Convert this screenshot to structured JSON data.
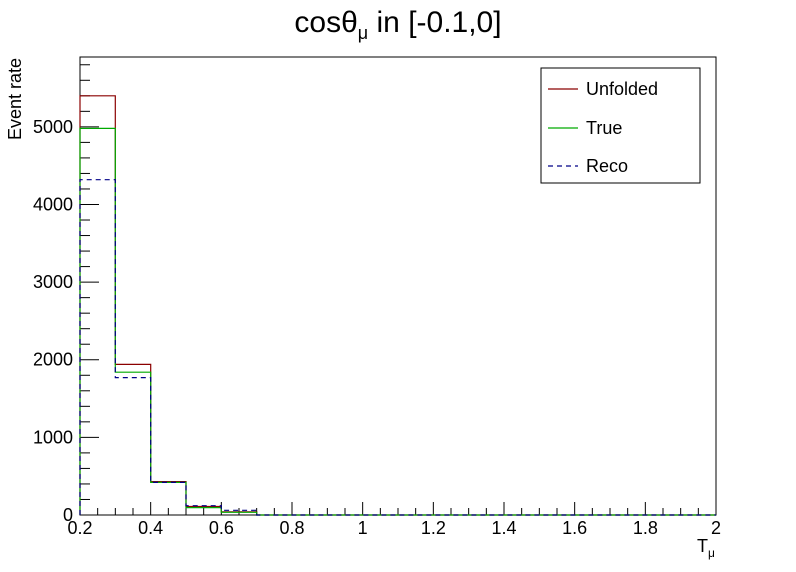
{
  "chart_data": {
    "type": "histogram",
    "title": {
      "main": "cos",
      "theta": "θ",
      "sub": "μ",
      "rest": " in [-0.1,0]"
    },
    "xlabel": {
      "main": "T",
      "sub": "μ"
    },
    "ylabel": "Event rate",
    "xlim": [
      0.2,
      2.0
    ],
    "ylim": [
      0,
      5900
    ],
    "x_ticks": [
      "0.2",
      "0.4",
      "0.6",
      "0.8",
      "1",
      "1.2",
      "1.4",
      "1.6",
      "1.8",
      "2"
    ],
    "y_ticks": [
      "0",
      "1000",
      "2000",
      "3000",
      "4000",
      "5000"
    ],
    "bin_edges": [
      0.2,
      0.3,
      0.4,
      0.5,
      0.6,
      0.7,
      0.8,
      0.9,
      1.0,
      1.1,
      1.2,
      1.3,
      1.4,
      1.5,
      1.6,
      1.7,
      1.8,
      1.9,
      2.0
    ],
    "series": [
      {
        "name": "Unfolded",
        "color": "#8b0000",
        "dash": false,
        "values": [
          5400,
          1940,
          430,
          110,
          40,
          0,
          0,
          0,
          0,
          0,
          0,
          0,
          0,
          0,
          0,
          0,
          0,
          0
        ]
      },
      {
        "name": "True",
        "color": "#00aa00",
        "dash": false,
        "values": [
          4980,
          1840,
          420,
          95,
          35,
          0,
          0,
          0,
          0,
          0,
          0,
          0,
          0,
          0,
          0,
          0,
          0,
          0
        ]
      },
      {
        "name": "Reco",
        "color": "#000088",
        "dash": true,
        "values": [
          4320,
          1770,
          420,
          120,
          60,
          0,
          0,
          0,
          0,
          0,
          0,
          0,
          0,
          0,
          0,
          0,
          0,
          0
        ]
      }
    ],
    "legend_position": "top-right",
    "grid": false
  }
}
